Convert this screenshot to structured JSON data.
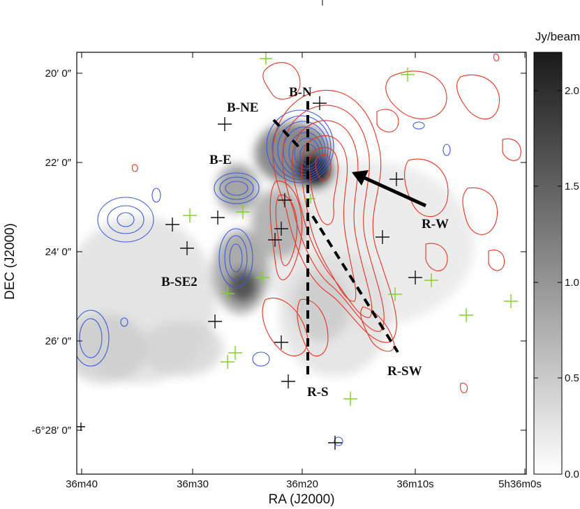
{
  "chart_data": {
    "type": "heatmap",
    "title": "",
    "xlabel": "RA (J2000)",
    "ylabel": "DEC (J2000)",
    "x_ticks": [
      "36m40",
      "36m30",
      "36m20",
      "36m10s",
      "5h36m0s"
    ],
    "y_ticks": [
      "20′ 0″",
      "22′ 0″",
      "24′ 0″",
      "26′ 0″",
      "-6°28′ 0″"
    ],
    "colorbar": {
      "label": "Jy/beam",
      "ticks": [
        "0.0",
        "0.5",
        "1.0",
        "1.5",
        "2.0"
      ],
      "range": [
        0.0,
        2.2
      ]
    },
    "region_labels": [
      "B-N",
      "B-NE",
      "B-E",
      "B-SE2",
      "R-W",
      "R-S",
      "R-SW"
    ],
    "contour_colors": {
      "blueshifted": "#3a5bd9",
      "redshifted": "#e8321e"
    },
    "marker_colors": {
      "black_cross": "#111111",
      "green_cross": "#7ed321"
    }
  }
}
